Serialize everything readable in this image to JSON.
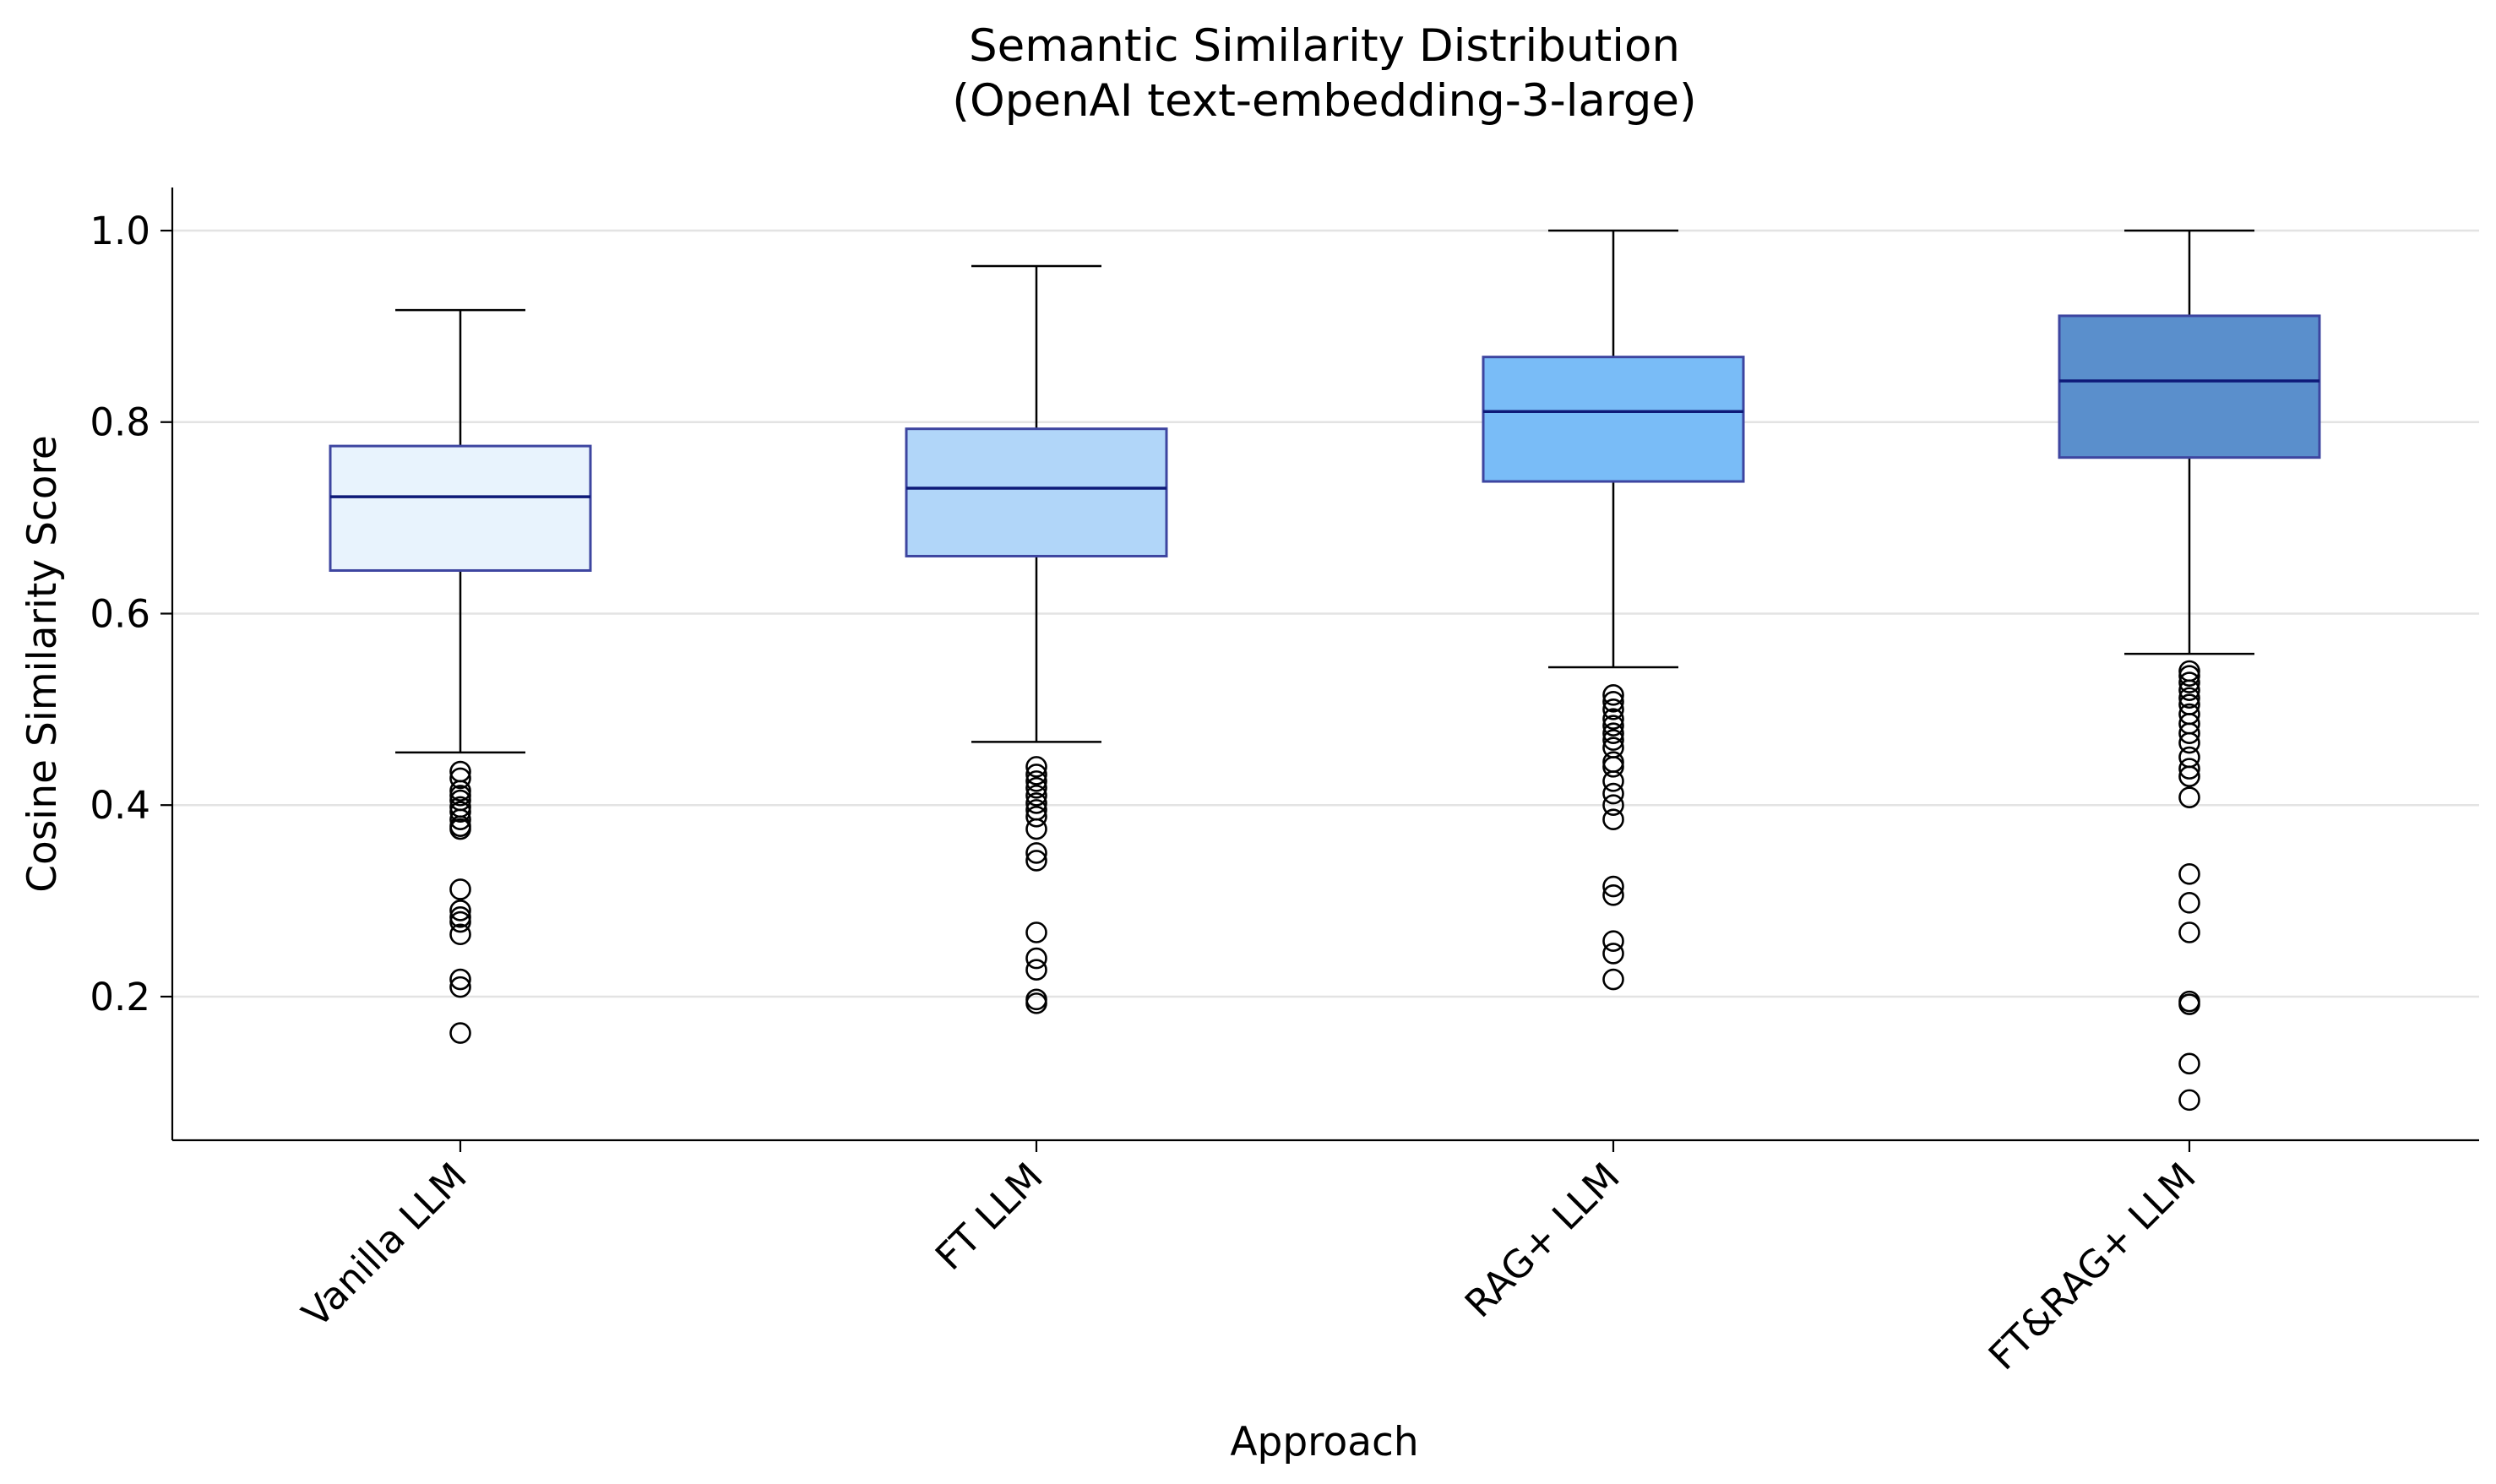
{
  "chart_data": {
    "type": "box",
    "title": "Semantic Similarity Distribution",
    "subtitle": "(OpenAI text-embedding-3-large)",
    "xlabel": "Approach",
    "ylabel": "Cosine Similarity Score",
    "ylim": [
      0.05,
      1.045
    ],
    "yticks": [
      0.2,
      0.4,
      0.6,
      0.8,
      1.0
    ],
    "ytick_labels": [
      "0.2",
      "0.4",
      "0.6",
      "0.8",
      "1.0"
    ],
    "grid": "horizontal",
    "categories": [
      "Vanilla LLM",
      "FT LLM",
      "RAG+ LLM",
      "FT&RAG+ LLM"
    ],
    "boxes": [
      {
        "category": "Vanilla LLM",
        "whisker_low": 0.455,
        "q1": 0.645,
        "median": 0.722,
        "q3": 0.775,
        "whisker_high": 0.917,
        "outliers": [
          0.435,
          0.428,
          0.415,
          0.41,
          0.405,
          0.398,
          0.393,
          0.385,
          0.378,
          0.375,
          0.312,
          0.29,
          0.283,
          0.278,
          0.265,
          0.218,
          0.21,
          0.162
        ],
        "fill": "#e8f3fd"
      },
      {
        "category": "FT LLM",
        "whisker_low": 0.466,
        "q1": 0.66,
        "median": 0.731,
        "q3": 0.793,
        "whisker_high": 0.963,
        "outliers": [
          0.44,
          0.432,
          0.425,
          0.418,
          0.41,
          0.402,
          0.395,
          0.388,
          0.375,
          0.35,
          0.342,
          0.267,
          0.24,
          0.228,
          0.197,
          0.193
        ],
        "fill": "#b1d6f9"
      },
      {
        "category": "RAG+ LLM",
        "whisker_low": 0.544,
        "q1": 0.738,
        "median": 0.811,
        "q3": 0.868,
        "whisker_high": 1.0,
        "outliers": [
          0.515,
          0.508,
          0.5,
          0.49,
          0.483,
          0.475,
          0.468,
          0.46,
          0.445,
          0.44,
          0.425,
          0.412,
          0.4,
          0.385,
          0.315,
          0.306,
          0.258,
          0.245,
          0.218
        ],
        "fill": "#79bcf7"
      },
      {
        "category": "FT&RAG+ LLM",
        "whisker_low": 0.558,
        "q1": 0.763,
        "median": 0.843,
        "q3": 0.911,
        "whisker_high": 1.0,
        "outliers": [
          0.54,
          0.535,
          0.528,
          0.52,
          0.512,
          0.505,
          0.495,
          0.485,
          0.475,
          0.465,
          0.45,
          0.438,
          0.43,
          0.408,
          0.328,
          0.298,
          0.267,
          0.195,
          0.192,
          0.13,
          0.092
        ],
        "fill": "#5a8fcc"
      }
    ],
    "box_edge_color": "#3d45a0",
    "median_color": "#0e1a78",
    "whisker_color": "#000000",
    "grid_color": "#e3e3e3"
  }
}
